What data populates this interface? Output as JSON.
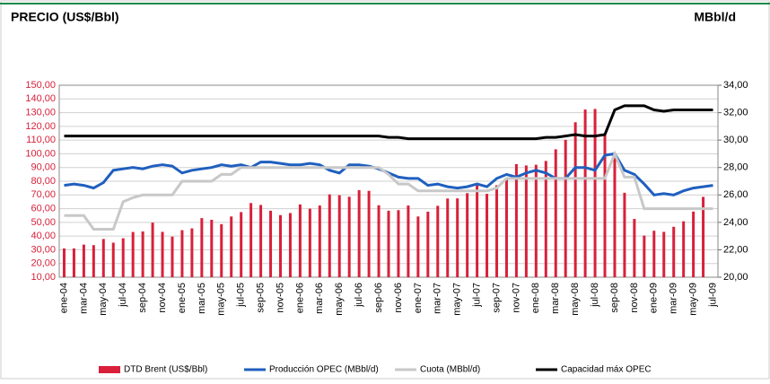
{
  "chart_data": {
    "type": "combo",
    "title": "PRECIO (US$/Bbl)",
    "y2_title": "MBbl/d",
    "categories": [
      "ene-04",
      null,
      "mar-04",
      null,
      "may-04",
      null,
      "jul-04",
      null,
      "sep-04",
      null,
      "nov-04",
      null,
      "ene-05",
      null,
      "mar-05",
      null,
      "may-05",
      null,
      "jul-05",
      null,
      "sep-05",
      null,
      "nov-05",
      null,
      "ene-06",
      null,
      "mar-06",
      null,
      "may-06",
      null,
      "jul-06",
      null,
      "sep-06",
      null,
      "nov-06",
      null,
      "ene-07",
      null,
      "mar-07",
      null,
      "may-07",
      null,
      "jul-07",
      null,
      "sep-07",
      null,
      "nov-07",
      null,
      "ene-08",
      null,
      "mar-08",
      null,
      "may-08",
      null,
      "jul-08",
      null,
      "sep-08",
      null,
      "nov-08",
      null,
      "ene-09",
      null,
      "mar-09",
      null,
      "may-09",
      null,
      "jul-09"
    ],
    "series": [
      {
        "name": "DTD Brent (US$/Bbl)",
        "type": "bar",
        "axis": "y",
        "color": "#d9203a",
        "values": [
          31,
          31,
          33.8,
          33.4,
          37.9,
          35.2,
          38.4,
          43,
          43.4,
          49.8,
          43.1,
          39.6,
          44.3,
          45.6,
          53.1,
          51.9,
          48.7,
          54.3,
          57.5,
          64.1,
          62.7,
          58.5,
          55.3,
          56.8,
          63.1,
          60,
          62.3,
          70.4,
          69.8,
          68.7,
          73.5,
          73,
          62.5,
          58.5,
          58.9,
          62.3,
          54.3,
          57.8,
          62.1,
          67.4,
          67.5,
          71.3,
          77,
          70.8,
          77.1,
          82.3,
          92.5,
          91.5,
          92,
          94.8,
          103.3,
          110.2,
          123,
          132.3,
          132.7,
          113.2,
          97.2,
          71.6,
          52.5,
          40.4,
          43.9,
          43.1,
          46.8,
          50.8,
          57.9,
          68.6,
          null
        ]
      },
      {
        "name": "Producción OPEC (MBbl/d)",
        "type": "line",
        "axis": "y2",
        "color": "#1f5fbf",
        "values": [
          26.7,
          26.8,
          26.7,
          26.5,
          26.9,
          27.8,
          27.9,
          28.0,
          27.9,
          28.1,
          28.2,
          28.1,
          27.6,
          27.8,
          27.9,
          28.0,
          28.2,
          28.1,
          28.2,
          28.0,
          28.4,
          28.4,
          28.3,
          28.2,
          28.2,
          28.3,
          28.2,
          27.8,
          27.6,
          28.2,
          28.2,
          28.1,
          27.9,
          27.6,
          27.3,
          27.2,
          27.2,
          26.7,
          26.8,
          26.6,
          26.5,
          26.6,
          26.8,
          26.6,
          27.2,
          27.5,
          27.3,
          27.6,
          27.8,
          27.6,
          27.2,
          27.2,
          28.0,
          28.0,
          27.8,
          28.9,
          29.0,
          27.8,
          27.5,
          26.8,
          26.0,
          26.1,
          26.0,
          26.3,
          26.5,
          26.6,
          26.7
        ]
      },
      {
        "name": "Cuota (MBbl/d)",
        "type": "line",
        "axis": "y2",
        "color": "#c8c8c8",
        "values": [
          24.5,
          24.5,
          24.5,
          23.5,
          23.5,
          23.5,
          25.5,
          25.8,
          26,
          26,
          26,
          26,
          27,
          27,
          27,
          27,
          27.5,
          27.5,
          28,
          28,
          28,
          28,
          28,
          28,
          28,
          28,
          28,
          28,
          28,
          28,
          28,
          28,
          28,
          27.5,
          26.8,
          26.8,
          26.3,
          26.3,
          26.3,
          26.3,
          26.3,
          26.3,
          26.3,
          26.3,
          26.5,
          27.2,
          27.2,
          27.2,
          27.2,
          27.2,
          27.2,
          27.2,
          27.2,
          27.2,
          27.2,
          27.2,
          29,
          27.3,
          27.3,
          25,
          25,
          25,
          25,
          25,
          25,
          25,
          25
        ]
      },
      {
        "name": "Capacidad máx OPEC",
        "type": "line",
        "axis": "y2",
        "color": "#000000",
        "values": [
          30.3,
          30.3,
          30.3,
          30.3,
          30.3,
          30.3,
          30.3,
          30.3,
          30.3,
          30.3,
          30.3,
          30.3,
          30.3,
          30.3,
          30.3,
          30.3,
          30.3,
          30.3,
          30.3,
          30.3,
          30.3,
          30.3,
          30.3,
          30.3,
          30.3,
          30.3,
          30.3,
          30.3,
          30.3,
          30.3,
          30.3,
          30.3,
          30.3,
          30.2,
          30.2,
          30.1,
          30.1,
          30.1,
          30.1,
          30.1,
          30.1,
          30.1,
          30.1,
          30.1,
          30.1,
          30.1,
          30.1,
          30.1,
          30.1,
          30.2,
          30.2,
          30.3,
          30.4,
          30.3,
          30.3,
          30.4,
          32.2,
          32.5,
          32.5,
          32.5,
          32.2,
          32.1,
          32.2,
          32.2,
          32.2,
          32.2,
          32.2
        ]
      }
    ],
    "ylim": [
      10,
      150
    ],
    "yticks": [
      {
        "value": 10,
        "label": "10,00"
      },
      {
        "value": 20,
        "label": "20,00"
      },
      {
        "value": 30,
        "label": "30,00"
      },
      {
        "value": 40,
        "label": "40,00"
      },
      {
        "value": 50,
        "label": "50,00"
      },
      {
        "value": 60,
        "label": "60,00"
      },
      {
        "value": 70,
        "label": "70,00"
      },
      {
        "value": 80,
        "label": "80,00"
      },
      {
        "value": 90,
        "label": "90,00"
      },
      {
        "value": 100,
        "label": "100,00"
      },
      {
        "value": 110,
        "label": "110,00"
      },
      {
        "value": 120,
        "label": "120,00"
      },
      {
        "value": 130,
        "label": "130,00"
      },
      {
        "value": 140,
        "label": "140,00"
      },
      {
        "value": 150,
        "label": "150,00"
      }
    ],
    "y2lim": [
      20,
      34
    ],
    "y2ticks": [
      {
        "value": 20,
        "label": "20,00"
      },
      {
        "value": 22,
        "label": "22,00"
      },
      {
        "value": 24,
        "label": "24,00"
      },
      {
        "value": 26,
        "label": "26,00"
      },
      {
        "value": 28,
        "label": "28,00"
      },
      {
        "value": 30,
        "label": "30,00"
      },
      {
        "value": 32,
        "label": "32,00"
      },
      {
        "value": 34,
        "label": "34,00"
      }
    ],
    "grid": true,
    "legend": "bottom"
  }
}
